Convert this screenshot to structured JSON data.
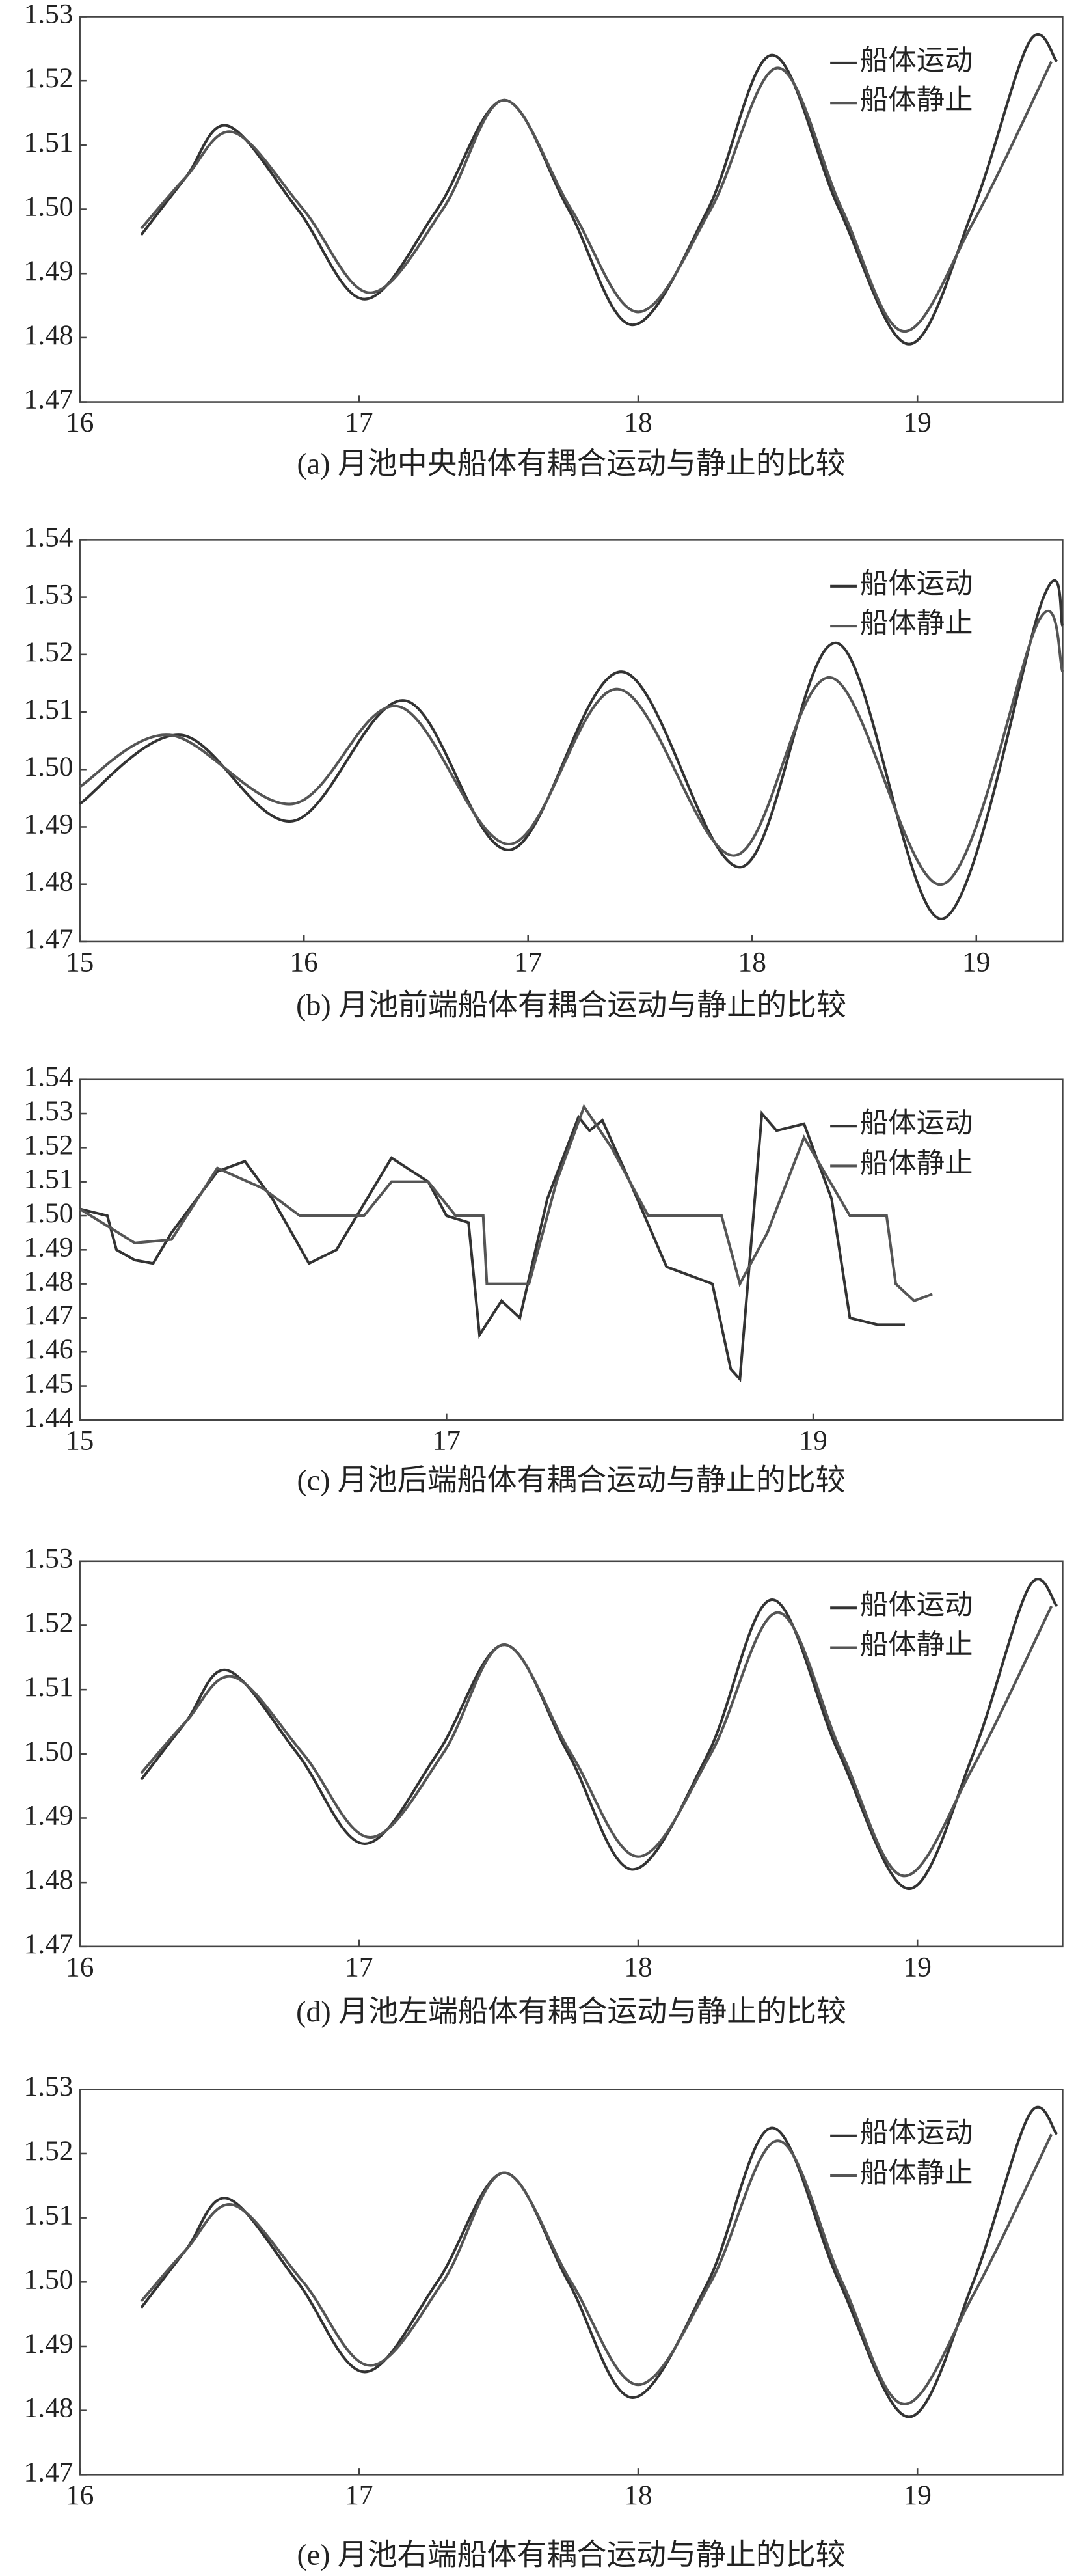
{
  "chart_data": [
    {
      "type": "line",
      "caption": "(a) 月池中央船体有耦合运动与静止的比较",
      "xlim": [
        16,
        19.52
      ],
      "xticks": [
        16,
        17,
        18,
        19
      ],
      "ylim": [
        1.47,
        1.53
      ],
      "yticks": [
        1.47,
        1.48,
        1.49,
        {
          "value": 1.5,
          "label": "1.50"
        },
        1.51,
        1.52,
        1.53
      ],
      "legend": "upper right",
      "smooth": true,
      "series": [
        {
          "name": "船体运动",
          "color": "#333333",
          "x": [
            16.22,
            16.38,
            16.53,
            16.78,
            17.02,
            17.28,
            17.52,
            17.75,
            17.98,
            18.25,
            18.48,
            18.72,
            18.97,
            19.2,
            19.4,
            19.5
          ],
          "values": [
            1.496,
            1.505,
            1.513,
            1.5,
            1.486,
            1.5,
            1.517,
            1.5,
            1.482,
            1.5,
            1.524,
            1.5,
            1.479,
            1.5,
            1.526,
            1.523
          ]
        },
        {
          "name": "船体静止",
          "color": "#555555",
          "x": [
            16.22,
            16.38,
            16.55,
            16.8,
            17.04,
            17.3,
            17.52,
            17.76,
            18.0,
            18.26,
            18.5,
            18.73,
            18.95,
            19.2,
            19.48
          ],
          "values": [
            1.497,
            1.505,
            1.512,
            1.5,
            1.487,
            1.5,
            1.517,
            1.5,
            1.484,
            1.5,
            1.522,
            1.5,
            1.481,
            1.498,
            1.523
          ]
        }
      ]
    },
    {
      "type": "line",
      "caption": "(b) 月池前端船体有耦合运动与静止的比较",
      "xlim": [
        15,
        19.385
      ],
      "xticks": [
        15,
        16,
        17,
        18,
        19
      ],
      "ylim": [
        1.47,
        1.54
      ],
      "yticks": [
        1.47,
        1.48,
        1.49,
        {
          "value": 1.5,
          "label": "1.50"
        },
        1.51,
        1.52,
        1.53,
        1.54
      ],
      "legend": "upper right",
      "smooth": true,
      "series": [
        {
          "name": "船体运动",
          "color": "#333333",
          "x": [
            15,
            15.45,
            15.95,
            16.45,
            16.92,
            17.42,
            17.95,
            18.38,
            18.85,
            19.3,
            19.385
          ],
          "values": [
            1.494,
            1.506,
            1.491,
            1.512,
            1.486,
            1.517,
            1.483,
            1.522,
            1.474,
            1.53,
            1.525
          ]
        },
        {
          "name": "船体静止",
          "color": "#555555",
          "x": [
            15,
            15.4,
            15.95,
            16.42,
            16.92,
            17.4,
            17.92,
            18.35,
            18.85,
            19.28,
            19.385
          ],
          "values": [
            1.497,
            1.506,
            1.494,
            1.511,
            1.487,
            1.514,
            1.485,
            1.516,
            1.48,
            1.526,
            1.517
          ]
        }
      ]
    },
    {
      "type": "line",
      "caption": "(c) 月池后端船体有耦合运动与静止的比较",
      "xlim": [
        15,
        20.36
      ],
      "xticks": [
        15,
        17,
        19
      ],
      "ylim": [
        1.44,
        1.54
      ],
      "yticks": [
        1.44,
        1.45,
        1.46,
        1.47,
        1.48,
        1.49,
        {
          "value": 1.5,
          "label": "1.50"
        },
        1.51,
        1.52,
        1.53,
        1.54
      ],
      "legend": "upper right",
      "smooth": false,
      "series": [
        {
          "name": "船体运动",
          "color": "#333333",
          "x": [
            15,
            15.15,
            15.2,
            15.3,
            15.4,
            15.5,
            15.75,
            15.9,
            16.05,
            16.25,
            16.4,
            16.7,
            16.9,
            17.0,
            17.12,
            17.18,
            17.3,
            17.4,
            17.55,
            17.72,
            17.78,
            17.85,
            18.0,
            18.2,
            18.45,
            18.55,
            18.6,
            18.72,
            18.8,
            18.95,
            19.1,
            19.2,
            19.35,
            19.5
          ],
          "values": [
            1.502,
            1.5,
            1.49,
            1.487,
            1.486,
            1.495,
            1.513,
            1.516,
            1.505,
            1.486,
            1.49,
            1.517,
            1.51,
            1.5,
            1.498,
            1.465,
            1.475,
            1.47,
            1.505,
            1.529,
            1.525,
            1.528,
            1.51,
            1.485,
            1.48,
            1.455,
            1.452,
            1.53,
            1.525,
            1.527,
            1.505,
            1.47,
            1.468,
            1.468
          ]
        },
        {
          "name": "船体静止",
          "color": "#555555",
          "x": [
            15,
            15.3,
            15.5,
            15.75,
            16.0,
            16.2,
            16.55,
            16.7,
            16.9,
            17.05,
            17.2,
            17.22,
            17.45,
            17.6,
            17.75,
            17.9,
            18.1,
            18.5,
            18.6,
            18.75,
            18.95,
            19.2,
            19.4,
            19.45,
            19.55,
            19.65
          ],
          "values": [
            1.502,
            1.492,
            1.493,
            1.514,
            1.508,
            1.5,
            1.5,
            1.51,
            1.51,
            1.5,
            1.5,
            1.48,
            1.48,
            1.51,
            1.532,
            1.52,
            1.5,
            1.5,
            1.48,
            1.495,
            1.523,
            1.5,
            1.5,
            1.48,
            1.475,
            1.477
          ]
        }
      ]
    },
    {
      "type": "line",
      "caption": "(d) 月池左端船体有耦合运动与静止的比较",
      "xlim": [
        16,
        19.52
      ],
      "xticks": [
        16,
        17,
        18,
        19
      ],
      "ylim": [
        1.47,
        1.53
      ],
      "yticks": [
        1.47,
        1.48,
        1.49,
        {
          "value": 1.5,
          "label": "1.50"
        },
        1.51,
        1.52,
        1.53
      ],
      "legend": "upper right",
      "smooth": true,
      "series": [
        {
          "name": "船体运动",
          "color": "#333333",
          "x": [
            16.22,
            16.38,
            16.53,
            16.78,
            17.02,
            17.28,
            17.52,
            17.75,
            17.98,
            18.25,
            18.48,
            18.72,
            18.97,
            19.2,
            19.4,
            19.5
          ],
          "values": [
            1.496,
            1.505,
            1.513,
            1.5,
            1.486,
            1.5,
            1.517,
            1.5,
            1.482,
            1.5,
            1.524,
            1.5,
            1.479,
            1.5,
            1.526,
            1.523
          ]
        },
        {
          "name": "船体静止",
          "color": "#555555",
          "x": [
            16.22,
            16.38,
            16.55,
            16.8,
            17.04,
            17.3,
            17.52,
            17.76,
            18.0,
            18.26,
            18.5,
            18.73,
            18.95,
            19.2,
            19.48
          ],
          "values": [
            1.497,
            1.505,
            1.512,
            1.5,
            1.487,
            1.5,
            1.517,
            1.5,
            1.484,
            1.5,
            1.522,
            1.5,
            1.481,
            1.498,
            1.523
          ]
        }
      ]
    },
    {
      "type": "line",
      "caption": "(e) 月池右端船体有耦合运动与静止的比较",
      "xlim": [
        16,
        19.52
      ],
      "xticks": [
        16,
        17,
        18,
        19
      ],
      "ylim": [
        1.47,
        1.53
      ],
      "yticks": [
        1.47,
        1.48,
        1.49,
        {
          "value": 1.5,
          "label": "1.50"
        },
        1.51,
        1.52,
        1.53
      ],
      "legend": "upper right",
      "smooth": true,
      "series": [
        {
          "name": "船体运动",
          "color": "#333333",
          "x": [
            16.22,
            16.38,
            16.53,
            16.78,
            17.02,
            17.28,
            17.52,
            17.75,
            17.98,
            18.25,
            18.48,
            18.72,
            18.97,
            19.2,
            19.4,
            19.5
          ],
          "values": [
            1.496,
            1.505,
            1.513,
            1.5,
            1.486,
            1.5,
            1.517,
            1.5,
            1.482,
            1.5,
            1.524,
            1.5,
            1.479,
            1.5,
            1.526,
            1.523
          ]
        },
        {
          "name": "船体静止",
          "color": "#555555",
          "x": [
            16.22,
            16.38,
            16.55,
            16.8,
            17.04,
            17.3,
            17.52,
            17.76,
            18.0,
            18.26,
            18.5,
            18.73,
            18.95,
            19.2,
            19.48
          ],
          "values": [
            1.497,
            1.505,
            1.512,
            1.5,
            1.487,
            1.5,
            1.517,
            1.5,
            1.484,
            1.5,
            1.522,
            1.5,
            1.481,
            1.498,
            1.523
          ]
        }
      ]
    }
  ]
}
